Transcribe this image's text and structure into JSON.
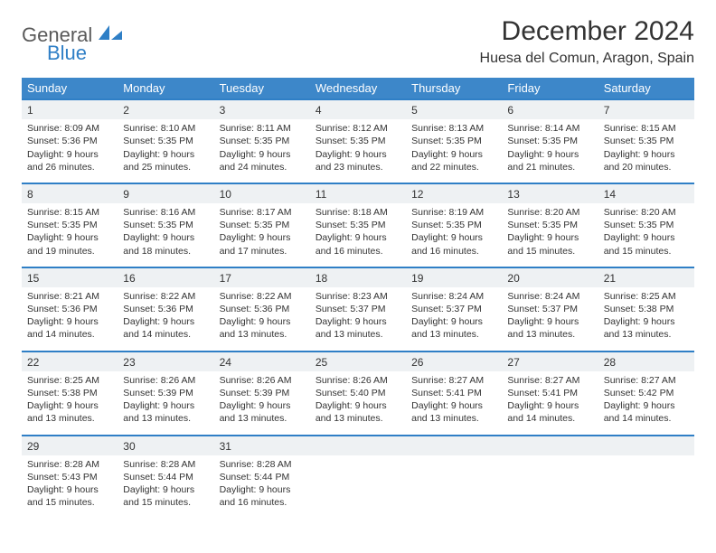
{
  "logo": {
    "general": "General",
    "blue": "Blue"
  },
  "title": "December 2024",
  "location": "Huesa del Comun, Aragon, Spain",
  "colors": {
    "header_bg": "#3d87c9",
    "header_text": "#ffffff",
    "daynum_bg": "#eef1f3",
    "daynum_border": "#2f7fc6",
    "body_text": "#333333",
    "logo_gray": "#5a5a5a",
    "logo_blue": "#2f7fc6"
  },
  "weekdays": [
    "Sunday",
    "Monday",
    "Tuesday",
    "Wednesday",
    "Thursday",
    "Friday",
    "Saturday"
  ],
  "days": [
    {
      "n": "1",
      "sunrise": "8:09 AM",
      "sunset": "5:36 PM",
      "daylight": "9 hours and 26 minutes."
    },
    {
      "n": "2",
      "sunrise": "8:10 AM",
      "sunset": "5:35 PM",
      "daylight": "9 hours and 25 minutes."
    },
    {
      "n": "3",
      "sunrise": "8:11 AM",
      "sunset": "5:35 PM",
      "daylight": "9 hours and 24 minutes."
    },
    {
      "n": "4",
      "sunrise": "8:12 AM",
      "sunset": "5:35 PM",
      "daylight": "9 hours and 23 minutes."
    },
    {
      "n": "5",
      "sunrise": "8:13 AM",
      "sunset": "5:35 PM",
      "daylight": "9 hours and 22 minutes."
    },
    {
      "n": "6",
      "sunrise": "8:14 AM",
      "sunset": "5:35 PM",
      "daylight": "9 hours and 21 minutes."
    },
    {
      "n": "7",
      "sunrise": "8:15 AM",
      "sunset": "5:35 PM",
      "daylight": "9 hours and 20 minutes."
    },
    {
      "n": "8",
      "sunrise": "8:15 AM",
      "sunset": "5:35 PM",
      "daylight": "9 hours and 19 minutes."
    },
    {
      "n": "9",
      "sunrise": "8:16 AM",
      "sunset": "5:35 PM",
      "daylight": "9 hours and 18 minutes."
    },
    {
      "n": "10",
      "sunrise": "8:17 AM",
      "sunset": "5:35 PM",
      "daylight": "9 hours and 17 minutes."
    },
    {
      "n": "11",
      "sunrise": "8:18 AM",
      "sunset": "5:35 PM",
      "daylight": "9 hours and 16 minutes."
    },
    {
      "n": "12",
      "sunrise": "8:19 AM",
      "sunset": "5:35 PM",
      "daylight": "9 hours and 16 minutes."
    },
    {
      "n": "13",
      "sunrise": "8:20 AM",
      "sunset": "5:35 PM",
      "daylight": "9 hours and 15 minutes."
    },
    {
      "n": "14",
      "sunrise": "8:20 AM",
      "sunset": "5:35 PM",
      "daylight": "9 hours and 15 minutes."
    },
    {
      "n": "15",
      "sunrise": "8:21 AM",
      "sunset": "5:36 PM",
      "daylight": "9 hours and 14 minutes."
    },
    {
      "n": "16",
      "sunrise": "8:22 AM",
      "sunset": "5:36 PM",
      "daylight": "9 hours and 14 minutes."
    },
    {
      "n": "17",
      "sunrise": "8:22 AM",
      "sunset": "5:36 PM",
      "daylight": "9 hours and 13 minutes."
    },
    {
      "n": "18",
      "sunrise": "8:23 AM",
      "sunset": "5:37 PM",
      "daylight": "9 hours and 13 minutes."
    },
    {
      "n": "19",
      "sunrise": "8:24 AM",
      "sunset": "5:37 PM",
      "daylight": "9 hours and 13 minutes."
    },
    {
      "n": "20",
      "sunrise": "8:24 AM",
      "sunset": "5:37 PM",
      "daylight": "9 hours and 13 minutes."
    },
    {
      "n": "21",
      "sunrise": "8:25 AM",
      "sunset": "5:38 PM",
      "daylight": "9 hours and 13 minutes."
    },
    {
      "n": "22",
      "sunrise": "8:25 AM",
      "sunset": "5:38 PM",
      "daylight": "9 hours and 13 minutes."
    },
    {
      "n": "23",
      "sunrise": "8:26 AM",
      "sunset": "5:39 PM",
      "daylight": "9 hours and 13 minutes."
    },
    {
      "n": "24",
      "sunrise": "8:26 AM",
      "sunset": "5:39 PM",
      "daylight": "9 hours and 13 minutes."
    },
    {
      "n": "25",
      "sunrise": "8:26 AM",
      "sunset": "5:40 PM",
      "daylight": "9 hours and 13 minutes."
    },
    {
      "n": "26",
      "sunrise": "8:27 AM",
      "sunset": "5:41 PM",
      "daylight": "9 hours and 13 minutes."
    },
    {
      "n": "27",
      "sunrise": "8:27 AM",
      "sunset": "5:41 PM",
      "daylight": "9 hours and 14 minutes."
    },
    {
      "n": "28",
      "sunrise": "8:27 AM",
      "sunset": "5:42 PM",
      "daylight": "9 hours and 14 minutes."
    },
    {
      "n": "29",
      "sunrise": "8:28 AM",
      "sunset": "5:43 PM",
      "daylight": "9 hours and 15 minutes."
    },
    {
      "n": "30",
      "sunrise": "8:28 AM",
      "sunset": "5:44 PM",
      "daylight": "9 hours and 15 minutes."
    },
    {
      "n": "31",
      "sunrise": "8:28 AM",
      "sunset": "5:44 PM",
      "daylight": "9 hours and 16 minutes."
    }
  ],
  "labels": {
    "sunrise": "Sunrise:",
    "sunset": "Sunset:",
    "daylight": "Daylight:"
  }
}
